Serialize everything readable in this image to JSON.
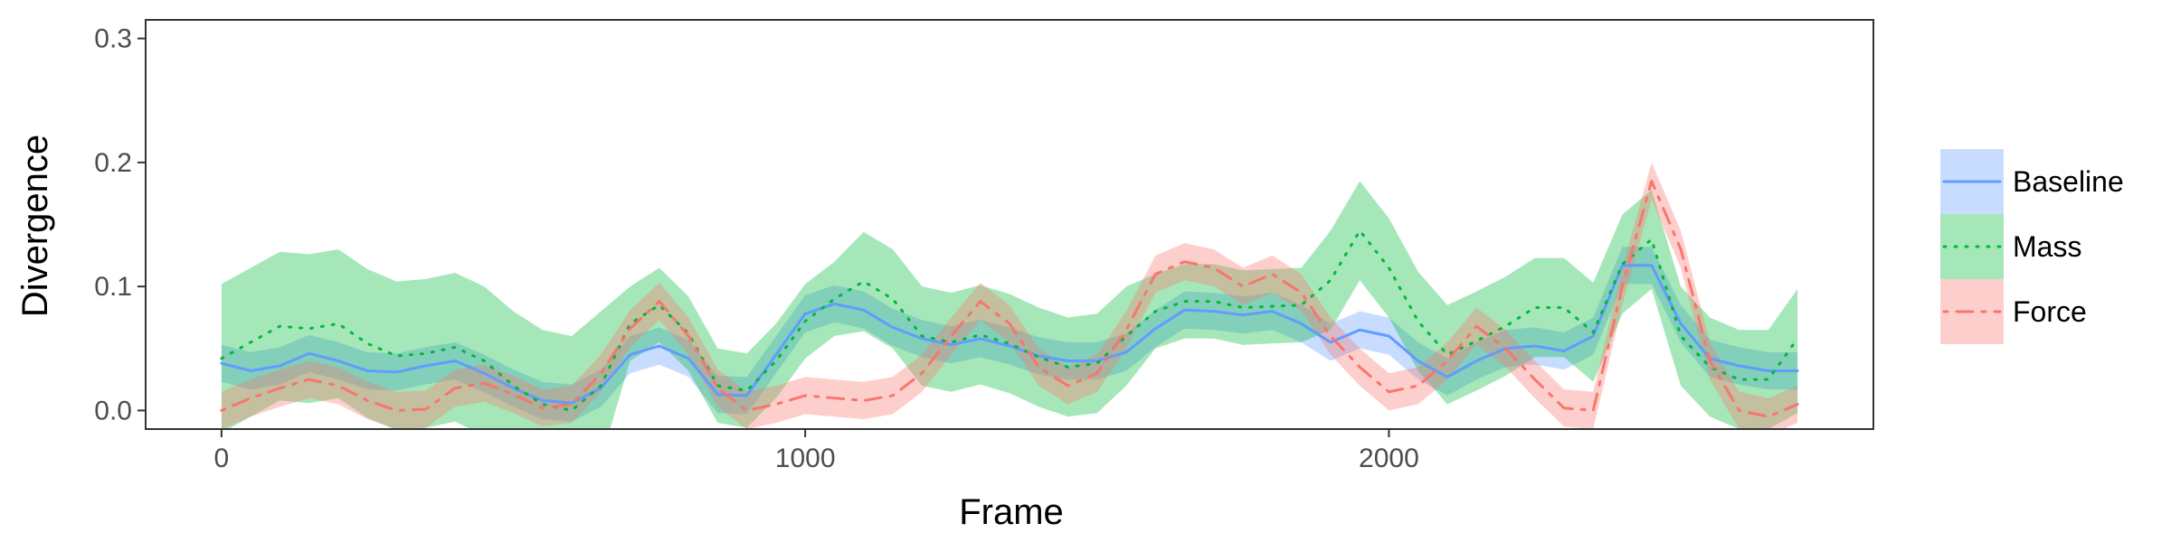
{
  "chart_data": {
    "type": "line",
    "title": "",
    "xlabel": "Frame",
    "ylabel": "Divergence",
    "xlim": [
      -130,
      2830
    ],
    "ylim": [
      -0.015,
      0.315
    ],
    "x_ticks": [
      0,
      1000,
      2000
    ],
    "x_tick_labels": [
      "0",
      "1000",
      "2000"
    ],
    "y_ticks": [
      0.0,
      0.1,
      0.2,
      0.3
    ],
    "y_tick_labels": [
      "0.0",
      "0.1",
      "0.2",
      "0.3"
    ],
    "grid": false,
    "legend_position": "right",
    "series": [
      {
        "name": "Baseline",
        "color": "#619CFF",
        "line_style": "solid",
        "x": [
          0,
          50,
          100,
          150,
          200,
          250,
          300,
          350,
          400,
          450,
          500,
          550,
          600,
          650,
          700,
          750,
          800,
          850,
          900,
          950,
          1000,
          1050,
          1100,
          1150,
          1200,
          1250,
          1300,
          1350,
          1400,
          1450,
          1500,
          1550,
          1600,
          1650,
          1700,
          1750,
          1800,
          1850,
          1900,
          1950,
          2000,
          2050,
          2100,
          2150,
          2200,
          2250,
          2300,
          2350,
          2400,
          2450,
          2500,
          2550,
          2600,
          2650,
          2700
        ],
        "y": [
          0.038,
          0.032,
          0.036,
          0.046,
          0.04,
          0.032,
          0.031,
          0.036,
          0.04,
          0.03,
          0.018,
          0.008,
          0.006,
          0.018,
          0.045,
          0.052,
          0.042,
          0.013,
          0.012,
          0.045,
          0.078,
          0.086,
          0.081,
          0.067,
          0.058,
          0.053,
          0.058,
          0.052,
          0.044,
          0.04,
          0.04,
          0.047,
          0.066,
          0.081,
          0.08,
          0.077,
          0.08,
          0.07,
          0.055,
          0.065,
          0.06,
          0.04,
          0.027,
          0.04,
          0.05,
          0.052,
          0.048,
          0.06,
          0.117,
          0.117,
          0.07,
          0.042,
          0.036,
          0.032,
          0.032
        ],
        "ci_low": [
          0.023,
          0.017,
          0.021,
          0.031,
          0.025,
          0.017,
          0.016,
          0.021,
          0.025,
          0.015,
          0.003,
          -0.007,
          -0.009,
          0.003,
          0.03,
          0.037,
          0.027,
          -0.002,
          -0.003,
          0.03,
          0.063,
          0.071,
          0.066,
          0.052,
          0.043,
          0.038,
          0.043,
          0.037,
          0.029,
          0.025,
          0.025,
          0.032,
          0.051,
          0.066,
          0.065,
          0.062,
          0.065,
          0.055,
          0.04,
          0.05,
          0.045,
          0.025,
          0.012,
          0.025,
          0.035,
          0.037,
          0.033,
          0.045,
          0.102,
          0.102,
          0.055,
          0.027,
          0.021,
          0.017,
          0.017
        ],
        "ci_high": [
          0.053,
          0.047,
          0.051,
          0.061,
          0.055,
          0.047,
          0.046,
          0.051,
          0.055,
          0.045,
          0.033,
          0.023,
          0.021,
          0.033,
          0.06,
          0.067,
          0.057,
          0.028,
          0.027,
          0.06,
          0.093,
          0.101,
          0.096,
          0.082,
          0.073,
          0.068,
          0.073,
          0.067,
          0.059,
          0.055,
          0.055,
          0.062,
          0.081,
          0.096,
          0.095,
          0.092,
          0.095,
          0.085,
          0.07,
          0.08,
          0.075,
          0.055,
          0.042,
          0.055,
          0.065,
          0.067,
          0.063,
          0.075,
          0.132,
          0.132,
          0.085,
          0.057,
          0.051,
          0.047,
          0.047
        ]
      },
      {
        "name": "Mass",
        "color": "#00BA38",
        "line_style": "dotted",
        "x": [
          0,
          50,
          100,
          150,
          200,
          250,
          300,
          350,
          400,
          450,
          500,
          550,
          600,
          650,
          700,
          750,
          800,
          850,
          900,
          950,
          1000,
          1050,
          1100,
          1150,
          1200,
          1250,
          1300,
          1350,
          1400,
          1450,
          1500,
          1550,
          1600,
          1650,
          1700,
          1750,
          1800,
          1850,
          1900,
          1950,
          2000,
          2050,
          2100,
          2150,
          2200,
          2250,
          2300,
          2350,
          2400,
          2450,
          2500,
          2550,
          2600,
          2650,
          2700
        ],
        "y": [
          0.042,
          0.055,
          0.068,
          0.066,
          0.07,
          0.054,
          0.044,
          0.046,
          0.051,
          0.04,
          0.02,
          0.005,
          0.0,
          0.02,
          0.07,
          0.085,
          0.062,
          0.02,
          0.016,
          0.04,
          0.072,
          0.09,
          0.104,
          0.09,
          0.06,
          0.055,
          0.061,
          0.054,
          0.043,
          0.035,
          0.038,
          0.06,
          0.08,
          0.088,
          0.088,
          0.083,
          0.084,
          0.085,
          0.105,
          0.145,
          0.115,
          0.072,
          0.045,
          0.056,
          0.068,
          0.083,
          0.083,
          0.063,
          0.118,
          0.138,
          0.06,
          0.035,
          0.025,
          0.025,
          0.058
        ],
        "ci_low": [
          -0.018,
          -0.005,
          0.008,
          0.006,
          0.01,
          -0.006,
          -0.016,
          -0.014,
          -0.009,
          -0.02,
          -0.04,
          -0.055,
          -0.06,
          -0.04,
          0.04,
          0.055,
          0.032,
          -0.01,
          -0.014,
          0.01,
          0.042,
          0.06,
          0.064,
          0.05,
          0.02,
          0.015,
          0.021,
          0.014,
          0.003,
          -0.005,
          -0.002,
          0.02,
          0.05,
          0.058,
          0.058,
          0.053,
          0.054,
          0.055,
          0.065,
          0.105,
          0.075,
          0.032,
          0.005,
          0.016,
          0.028,
          0.043,
          0.043,
          0.023,
          0.078,
          0.098,
          0.02,
          -0.005,
          -0.015,
          -0.015,
          -0.002
        ],
        "ci_high": [
          0.102,
          0.115,
          0.128,
          0.126,
          0.13,
          0.114,
          0.104,
          0.106,
          0.111,
          0.1,
          0.08,
          0.065,
          0.06,
          0.08,
          0.1,
          0.115,
          0.092,
          0.05,
          0.046,
          0.07,
          0.102,
          0.12,
          0.144,
          0.13,
          0.1,
          0.095,
          0.101,
          0.094,
          0.083,
          0.075,
          0.078,
          0.1,
          0.11,
          0.118,
          0.118,
          0.113,
          0.114,
          0.115,
          0.145,
          0.185,
          0.155,
          0.112,
          0.085,
          0.096,
          0.108,
          0.123,
          0.123,
          0.103,
          0.158,
          0.178,
          0.1,
          0.075,
          0.065,
          0.065,
          0.098
        ]
      },
      {
        "name": "Force",
        "color": "#F8766D",
        "line_style": "dotdash",
        "x": [
          0,
          50,
          100,
          150,
          200,
          250,
          300,
          350,
          400,
          450,
          500,
          550,
          600,
          650,
          700,
          750,
          800,
          850,
          900,
          950,
          1000,
          1050,
          1100,
          1150,
          1200,
          1250,
          1300,
          1350,
          1400,
          1450,
          1500,
          1550,
          1600,
          1650,
          1700,
          1750,
          1800,
          1850,
          1900,
          1950,
          2000,
          2050,
          2100,
          2150,
          2200,
          2250,
          2300,
          2350,
          2400,
          2450,
          2500,
          2550,
          2600,
          2650,
          2700
        ],
        "y": [
          0.0,
          0.01,
          0.018,
          0.025,
          0.02,
          0.008,
          0.0,
          0.001,
          0.018,
          0.022,
          0.013,
          0.002,
          0.005,
          0.03,
          0.066,
          0.088,
          0.06,
          0.018,
          0.0,
          0.005,
          0.012,
          0.01,
          0.008,
          0.012,
          0.03,
          0.06,
          0.088,
          0.07,
          0.035,
          0.02,
          0.03,
          0.065,
          0.11,
          0.12,
          0.115,
          0.1,
          0.11,
          0.095,
          0.06,
          0.035,
          0.015,
          0.02,
          0.04,
          0.068,
          0.05,
          0.025,
          0.002,
          0.0,
          0.1,
          0.185,
          0.13,
          0.04,
          0.0,
          -0.005,
          0.005
        ],
        "ci_low": [
          -0.015,
          -0.005,
          0.003,
          0.01,
          0.005,
          -0.007,
          -0.015,
          -0.014,
          0.003,
          0.007,
          -0.002,
          -0.013,
          -0.01,
          0.015,
          0.051,
          0.073,
          0.045,
          0.003,
          -0.015,
          -0.01,
          -0.003,
          -0.005,
          -0.007,
          -0.003,
          0.015,
          0.045,
          0.073,
          0.055,
          0.02,
          0.005,
          0.015,
          0.05,
          0.095,
          0.105,
          0.1,
          0.085,
          0.095,
          0.08,
          0.045,
          0.02,
          0.0,
          0.005,
          0.025,
          0.053,
          0.035,
          0.01,
          -0.013,
          -0.015,
          0.085,
          0.17,
          0.115,
          0.025,
          -0.015,
          -0.02,
          -0.01
        ],
        "ci_high": [
          0.015,
          0.025,
          0.033,
          0.04,
          0.035,
          0.023,
          0.015,
          0.016,
          0.033,
          0.037,
          0.028,
          0.017,
          0.02,
          0.045,
          0.081,
          0.103,
          0.075,
          0.033,
          0.015,
          0.02,
          0.027,
          0.025,
          0.023,
          0.027,
          0.045,
          0.075,
          0.103,
          0.085,
          0.05,
          0.035,
          0.045,
          0.08,
          0.125,
          0.135,
          0.13,
          0.115,
          0.125,
          0.11,
          0.075,
          0.05,
          0.03,
          0.035,
          0.055,
          0.083,
          0.065,
          0.04,
          0.017,
          0.015,
          0.115,
          0.2,
          0.145,
          0.055,
          0.015,
          0.01,
          0.02
        ]
      }
    ]
  }
}
